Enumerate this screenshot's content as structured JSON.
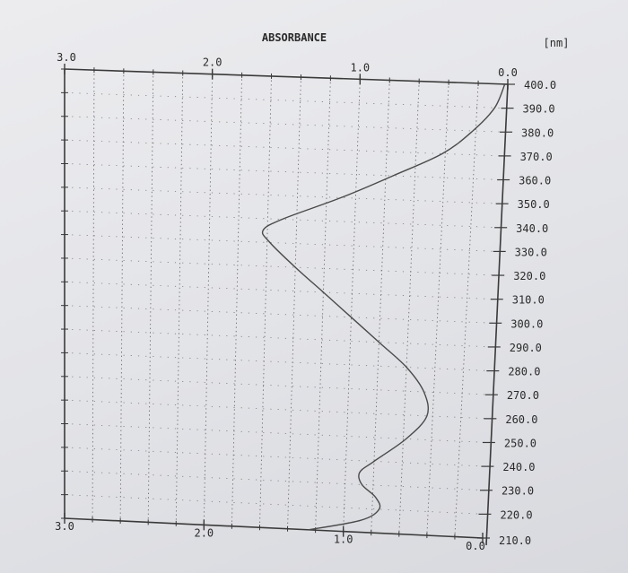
{
  "chart_data": {
    "type": "line",
    "title": "ABSORBANCE",
    "unit_label": "[nm]",
    "x_axis": {
      "label": "ABSORBANCE",
      "reversed": true,
      "range": [
        0.0,
        3.0
      ],
      "tick_labels_top": [
        "3.0",
        "2.0",
        "1.0",
        "0.0"
      ],
      "tick_labels_bottom": [
        "3.0",
        "2.0",
        "1.0",
        "0.0"
      ]
    },
    "y_axis": {
      "label": "[nm]",
      "range": [
        210.0,
        400.0
      ],
      "tick_labels": [
        "400.0",
        "390.0",
        "380.0",
        "370.0",
        "360.0",
        "350.0",
        "340.0",
        "330.0",
        "320.0",
        "310.0",
        "300.0",
        "290.0",
        "280.0",
        "270.0",
        "260.0",
        "250.0",
        "240.0",
        "230.0",
        "220.0",
        "210.0"
      ]
    },
    "grid": true,
    "series": [
      {
        "points": [
          {
            "wavelength": 400,
            "absorbance": 0.02
          },
          {
            "wavelength": 390,
            "absorbance": 0.08
          },
          {
            "wavelength": 380,
            "absorbance": 0.22
          },
          {
            "wavelength": 370,
            "absorbance": 0.42
          },
          {
            "wavelength": 360,
            "absorbance": 0.75
          },
          {
            "wavelength": 350,
            "absorbance": 1.1
          },
          {
            "wavelength": 340,
            "absorbance": 1.5
          },
          {
            "wavelength": 335,
            "absorbance": 1.63
          },
          {
            "wavelength": 330,
            "absorbance": 1.58
          },
          {
            "wavelength": 320,
            "absorbance": 1.4
          },
          {
            "wavelength": 310,
            "absorbance": 1.2
          },
          {
            "wavelength": 300,
            "absorbance": 1.0
          },
          {
            "wavelength": 290,
            "absorbance": 0.8
          },
          {
            "wavelength": 280,
            "absorbance": 0.6
          },
          {
            "wavelength": 270,
            "absorbance": 0.47
          },
          {
            "wavelength": 260,
            "absorbance": 0.44
          },
          {
            "wavelength": 250,
            "absorbance": 0.58
          },
          {
            "wavelength": 240,
            "absorbance": 0.8
          },
          {
            "wavelength": 235,
            "absorbance": 0.9
          },
          {
            "wavelength": 230,
            "absorbance": 0.88
          },
          {
            "wavelength": 225,
            "absorbance": 0.78
          },
          {
            "wavelength": 220,
            "absorbance": 0.75
          },
          {
            "wavelength": 215,
            "absorbance": 0.88
          },
          {
            "wavelength": 210,
            "absorbance": 1.25
          }
        ]
      }
    ]
  }
}
